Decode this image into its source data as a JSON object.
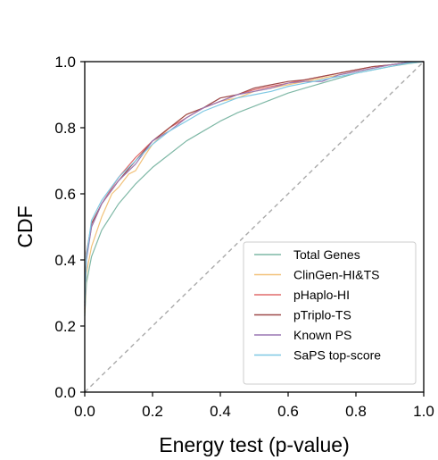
{
  "chart_data": {
    "type": "line",
    "xlabel": "Energy test (p-value)",
    "ylabel": "CDF",
    "xlim": [
      0,
      1
    ],
    "ylim": [
      0,
      1
    ],
    "xticks": [
      0.0,
      0.2,
      0.4,
      0.6,
      0.8,
      1.0
    ],
    "yticks": [
      0.0,
      0.2,
      0.4,
      0.6,
      0.8,
      1.0
    ],
    "xtick_labels": [
      "0.0",
      "0.2",
      "0.4",
      "0.6",
      "0.8",
      "1.0"
    ],
    "ytick_labels": [
      "0.0",
      "0.2",
      "0.4",
      "0.6",
      "0.8",
      "1.0"
    ],
    "grid": false,
    "legend_position": "lower-right",
    "reference_line": {
      "x": [
        0,
        1
      ],
      "y": [
        0,
        1
      ],
      "style": "dashed",
      "color": "#aaaaaa"
    },
    "series": [
      {
        "name": "Total Genes",
        "color": "#7fb8a6",
        "x": [
          0,
          0.005,
          0.02,
          0.05,
          0.1,
          0.15,
          0.2,
          0.25,
          0.3,
          0.35,
          0.4,
          0.45,
          0.5,
          0.55,
          0.6,
          0.65,
          0.7,
          0.75,
          0.8,
          0.85,
          0.9,
          0.95,
          1.0
        ],
        "y": [
          0.23,
          0.33,
          0.41,
          0.49,
          0.57,
          0.63,
          0.68,
          0.72,
          0.76,
          0.79,
          0.82,
          0.845,
          0.865,
          0.885,
          0.905,
          0.92,
          0.935,
          0.95,
          0.965,
          0.975,
          0.985,
          0.993,
          1.0
        ]
      },
      {
        "name": "ClinGen-HI&TS",
        "color": "#f2c27a",
        "x": [
          0,
          0.005,
          0.02,
          0.05,
          0.08,
          0.1,
          0.13,
          0.15,
          0.18,
          0.2,
          0.25,
          0.3,
          0.35,
          0.4,
          0.45,
          0.5,
          0.55,
          0.6,
          0.65,
          0.7,
          0.75,
          0.8,
          0.85,
          0.9,
          0.95,
          1.0
        ],
        "y": [
          0.24,
          0.36,
          0.44,
          0.53,
          0.6,
          0.62,
          0.66,
          0.67,
          0.72,
          0.75,
          0.8,
          0.84,
          0.86,
          0.88,
          0.89,
          0.91,
          0.92,
          0.93,
          0.94,
          0.95,
          0.96,
          0.97,
          0.98,
          0.99,
          0.995,
          1.0
        ]
      },
      {
        "name": "pHaplo-HI",
        "color": "#e06b6b",
        "x": [
          0,
          0.005,
          0.02,
          0.05,
          0.1,
          0.15,
          0.2,
          0.25,
          0.3,
          0.35,
          0.4,
          0.45,
          0.5,
          0.55,
          0.6,
          0.65,
          0.7,
          0.75,
          0.8,
          0.85,
          0.9,
          0.95,
          1.0
        ],
        "y": [
          0.26,
          0.41,
          0.5,
          0.57,
          0.65,
          0.71,
          0.76,
          0.8,
          0.83,
          0.86,
          0.88,
          0.9,
          0.915,
          0.925,
          0.935,
          0.945,
          0.955,
          0.965,
          0.975,
          0.985,
          0.99,
          0.997,
          1.0
        ]
      },
      {
        "name": "pTriplo-TS",
        "color": "#9e4a4a",
        "x": [
          0,
          0.005,
          0.02,
          0.05,
          0.1,
          0.15,
          0.2,
          0.25,
          0.3,
          0.35,
          0.4,
          0.45,
          0.5,
          0.55,
          0.6,
          0.65,
          0.7,
          0.75,
          0.8,
          0.85,
          0.9,
          0.95,
          1.0
        ],
        "y": [
          0.27,
          0.42,
          0.51,
          0.57,
          0.64,
          0.7,
          0.76,
          0.8,
          0.84,
          0.86,
          0.89,
          0.9,
          0.92,
          0.93,
          0.94,
          0.945,
          0.955,
          0.965,
          0.975,
          0.985,
          0.99,
          0.997,
          1.0
        ]
      },
      {
        "name": "Known PS",
        "color": "#9a77b3",
        "x": [
          0,
          0.005,
          0.02,
          0.05,
          0.1,
          0.15,
          0.2,
          0.25,
          0.3,
          0.35,
          0.4,
          0.45,
          0.5,
          0.55,
          0.6,
          0.65,
          0.7,
          0.75,
          0.8,
          0.85,
          0.9,
          0.95,
          1.0
        ],
        "y": [
          0.25,
          0.4,
          0.5,
          0.57,
          0.64,
          0.69,
          0.76,
          0.79,
          0.83,
          0.86,
          0.88,
          0.9,
          0.91,
          0.92,
          0.935,
          0.94,
          0.94,
          0.96,
          0.97,
          0.98,
          0.99,
          0.997,
          1.0
        ]
      },
      {
        "name": "SaPS top-score",
        "color": "#7ec8e3",
        "x": [
          0,
          0.005,
          0.02,
          0.05,
          0.1,
          0.15,
          0.2,
          0.25,
          0.3,
          0.35,
          0.4,
          0.45,
          0.5,
          0.55,
          0.6,
          0.65,
          0.7,
          0.75,
          0.8,
          0.85,
          0.9,
          0.95,
          1.0
        ],
        "y": [
          0.26,
          0.41,
          0.52,
          0.58,
          0.65,
          0.7,
          0.75,
          0.79,
          0.82,
          0.85,
          0.87,
          0.89,
          0.9,
          0.91,
          0.925,
          0.935,
          0.945,
          0.955,
          0.965,
          0.975,
          0.985,
          0.995,
          1.0
        ]
      }
    ]
  }
}
